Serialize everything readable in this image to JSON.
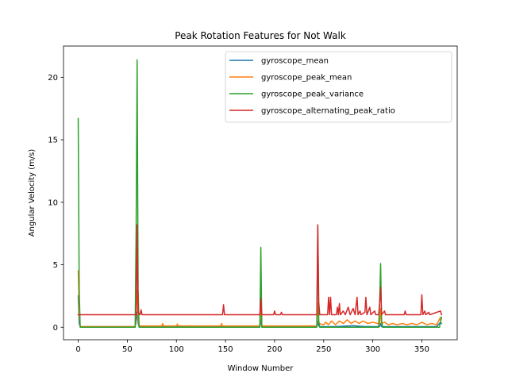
{
  "chart_data": {
    "type": "line",
    "title": "Peak Rotation Features for Not Walk",
    "xlabel": "Window Number",
    "ylabel": "Angular Velocity (m/s)",
    "xlim": [
      -15,
      386
    ],
    "ylim": [
      -1.0,
      22.5
    ],
    "xticks": [
      0,
      50,
      100,
      150,
      200,
      250,
      300,
      350
    ],
    "yticks": [
      0,
      5,
      10,
      15,
      20
    ],
    "grid": false,
    "legend_position": "top-right",
    "series": [
      {
        "name": "gyroscope_mean",
        "color": "#1f77b4",
        "points": [
          [
            0,
            2.5
          ],
          [
            1,
            0.3
          ],
          [
            2,
            0.05
          ],
          [
            58,
            0.05
          ],
          [
            59,
            0.5
          ],
          [
            60,
            1.2
          ],
          [
            61,
            0.3
          ],
          [
            62,
            0.05
          ],
          [
            185,
            0.05
          ],
          [
            186,
            0.6
          ],
          [
            187,
            0.05
          ],
          [
            243,
            0.05
          ],
          [
            244,
            0.5
          ],
          [
            245,
            0.1
          ],
          [
            246,
            0.05
          ],
          [
            260,
            0.05
          ],
          [
            270,
            0.08
          ],
          [
            280,
            0.12
          ],
          [
            290,
            0.06
          ],
          [
            300,
            0.05
          ],
          [
            307,
            0.05
          ],
          [
            308,
            0.3
          ],
          [
            309,
            0.05
          ],
          [
            365,
            0.05
          ],
          [
            369,
            0.4
          ],
          [
            370,
            0.3
          ]
        ]
      },
      {
        "name": "gyroscope_peak_mean",
        "color": "#ff7f0e",
        "points": [
          [
            0,
            4.5
          ],
          [
            1,
            1.0
          ],
          [
            2,
            0.05
          ],
          [
            58,
            0.05
          ],
          [
            59,
            2.0
          ],
          [
            60,
            3.0
          ],
          [
            61,
            0.5
          ],
          [
            62,
            0.1
          ],
          [
            85,
            0.1
          ],
          [
            86,
            0.3
          ],
          [
            87,
            0.1
          ],
          [
            100,
            0.1
          ],
          [
            101,
            0.25
          ],
          [
            102,
            0.1
          ],
          [
            145,
            0.1
          ],
          [
            146,
            0.3
          ],
          [
            147,
            0.1
          ],
          [
            185,
            0.1
          ],
          [
            186,
            1.8
          ],
          [
            187,
            0.1
          ],
          [
            243,
            0.1
          ],
          [
            244,
            2.0
          ],
          [
            245,
            0.3
          ],
          [
            250,
            0.2
          ],
          [
            252,
            0.4
          ],
          [
            255,
            0.2
          ],
          [
            258,
            0.5
          ],
          [
            262,
            0.2
          ],
          [
            266,
            0.5
          ],
          [
            270,
            0.3
          ],
          [
            274,
            0.6
          ],
          [
            278,
            0.3
          ],
          [
            282,
            0.5
          ],
          [
            286,
            0.3
          ],
          [
            290,
            0.5
          ],
          [
            295,
            0.3
          ],
          [
            300,
            0.4
          ],
          [
            305,
            0.3
          ],
          [
            307,
            0.2
          ],
          [
            308,
            1.5
          ],
          [
            309,
            0.3
          ],
          [
            312,
            0.4
          ],
          [
            316,
            0.2
          ],
          [
            320,
            0.3
          ],
          [
            325,
            0.2
          ],
          [
            330,
            0.3
          ],
          [
            335,
            0.2
          ],
          [
            340,
            0.3
          ],
          [
            345,
            0.2
          ],
          [
            350,
            0.4
          ],
          [
            355,
            0.2
          ],
          [
            360,
            0.3
          ],
          [
            365,
            0.2
          ],
          [
            369,
            0.8
          ],
          [
            370,
            0.6
          ]
        ]
      },
      {
        "name": "gyroscope_peak_variance",
        "color": "#2ca02c",
        "points": [
          [
            0,
            16.7
          ],
          [
            1,
            3.0
          ],
          [
            2,
            0.0
          ],
          [
            58,
            0.0
          ],
          [
            59,
            8.0
          ],
          [
            60,
            21.4
          ],
          [
            61,
            3.0
          ],
          [
            62,
            0.0
          ],
          [
            185,
            0.0
          ],
          [
            186,
            6.4
          ],
          [
            187,
            0.0
          ],
          [
            243,
            0.0
          ],
          [
            244,
            8.0
          ],
          [
            245,
            0.5
          ],
          [
            246,
            0.0
          ],
          [
            306,
            0.0
          ],
          [
            307,
            2.0
          ],
          [
            308,
            5.1
          ],
          [
            309,
            0.5
          ],
          [
            310,
            0.0
          ],
          [
            368,
            0.0
          ],
          [
            369,
            0.5
          ],
          [
            370,
            0.8
          ]
        ]
      },
      {
        "name": "gyroscope_alternating_peak_ratio",
        "color": "#d62728",
        "points": [
          [
            0,
            1.0
          ],
          [
            59,
            1.0
          ],
          [
            60,
            8.2
          ],
          [
            61,
            1.2
          ],
          [
            63,
            1.0
          ],
          [
            64,
            1.4
          ],
          [
            65,
            1.0
          ],
          [
            147,
            1.0
          ],
          [
            148,
            1.8
          ],
          [
            149,
            1.0
          ],
          [
            185,
            1.0
          ],
          [
            186,
            2.3
          ],
          [
            187,
            1.0
          ],
          [
            199,
            1.0
          ],
          [
            200,
            1.3
          ],
          [
            201,
            1.0
          ],
          [
            206,
            1.0
          ],
          [
            207,
            1.2
          ],
          [
            208,
            1.0
          ],
          [
            243,
            1.0
          ],
          [
            244,
            8.2
          ],
          [
            245,
            2.0
          ],
          [
            246,
            1.0
          ],
          [
            254,
            1.0
          ],
          [
            255,
            2.4
          ],
          [
            256,
            1.0
          ],
          [
            257,
            2.4
          ],
          [
            258,
            1.0
          ],
          [
            263,
            1.0
          ],
          [
            264,
            1.6
          ],
          [
            265,
            1.0
          ],
          [
            266,
            1.9
          ],
          [
            267,
            1.0
          ],
          [
            270,
            1.3
          ],
          [
            272,
            1.0
          ],
          [
            275,
            1.6
          ],
          [
            277,
            1.0
          ],
          [
            280,
            1.5
          ],
          [
            282,
            1.0
          ],
          [
            284,
            2.4
          ],
          [
            285,
            1.0
          ],
          [
            287,
            1.3
          ],
          [
            288,
            1.0
          ],
          [
            292,
            1.2
          ],
          [
            293,
            2.4
          ],
          [
            294,
            1.0
          ],
          [
            297,
            1.6
          ],
          [
            298,
            1.0
          ],
          [
            302,
            1.3
          ],
          [
            303,
            1.0
          ],
          [
            306,
            1.0
          ],
          [
            307,
            1.9
          ],
          [
            308,
            3.2
          ],
          [
            309,
            1.0
          ],
          [
            312,
            1.3
          ],
          [
            313,
            1.0
          ],
          [
            332,
            1.0
          ],
          [
            333,
            1.3
          ],
          [
            334,
            1.0
          ],
          [
            349,
            1.0
          ],
          [
            350,
            2.6
          ],
          [
            351,
            1.0
          ],
          [
            353,
            1.3
          ],
          [
            354,
            1.0
          ],
          [
            357,
            1.2
          ],
          [
            358,
            1.0
          ],
          [
            369,
            1.3
          ],
          [
            370,
            1.0
          ]
        ]
      }
    ]
  }
}
